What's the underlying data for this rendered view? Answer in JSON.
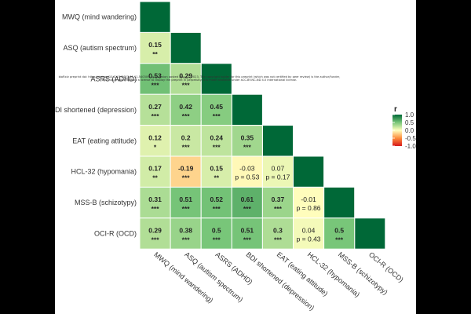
{
  "chart_data": {
    "type": "heatmap",
    "subtype": "lower-triangle correlation matrix",
    "variables": [
      "MWQ (mind wandering)",
      "ASQ (autism spectrum)",
      "ASRS (ADHD)",
      "BDI shortened (depression)",
      "EAT (eating attitude)",
      "HCL-32 (hypomania)",
      "MSS-B (schizotypy)",
      "OCI-R (OCD)"
    ],
    "cells": [
      {
        "row": 1,
        "col": 0,
        "value": 0.15,
        "label": "0.15",
        "sig": "**"
      },
      {
        "row": 2,
        "col": 0,
        "value": 0.53,
        "label": "0.53",
        "sig": "***"
      },
      {
        "row": 2,
        "col": 1,
        "value": 0.29,
        "label": "0.29",
        "sig": "***"
      },
      {
        "row": 3,
        "col": 0,
        "value": 0.27,
        "label": "0.27",
        "sig": "***"
      },
      {
        "row": 3,
        "col": 1,
        "value": 0.42,
        "label": "0.42",
        "sig": "***"
      },
      {
        "row": 3,
        "col": 2,
        "value": 0.45,
        "label": "0.45",
        "sig": "***"
      },
      {
        "row": 4,
        "col": 0,
        "value": 0.12,
        "label": "0.12",
        "sig": "*"
      },
      {
        "row": 4,
        "col": 1,
        "value": 0.2,
        "label": "0.2",
        "sig": "***"
      },
      {
        "row": 4,
        "col": 2,
        "value": 0.24,
        "label": "0.24",
        "sig": "***"
      },
      {
        "row": 4,
        "col": 3,
        "value": 0.35,
        "label": "0.35",
        "sig": "***"
      },
      {
        "row": 5,
        "col": 0,
        "value": 0.17,
        "label": "0.17",
        "sig": "**"
      },
      {
        "row": 5,
        "col": 1,
        "value": -0.19,
        "label": "-0.19",
        "sig": "***"
      },
      {
        "row": 5,
        "col": 2,
        "value": 0.15,
        "label": "0.15",
        "sig": "**"
      },
      {
        "row": 5,
        "col": 3,
        "value": -0.03,
        "label": "-0.03",
        "sig": "p = 0.53"
      },
      {
        "row": 5,
        "col": 4,
        "value": 0.07,
        "label": "0.07",
        "sig": "p = 0.17"
      },
      {
        "row": 6,
        "col": 0,
        "value": 0.31,
        "label": "0.31",
        "sig": "***"
      },
      {
        "row": 6,
        "col": 1,
        "value": 0.51,
        "label": "0.51",
        "sig": "***"
      },
      {
        "row": 6,
        "col": 2,
        "value": 0.52,
        "label": "0.52",
        "sig": "***"
      },
      {
        "row": 6,
        "col": 3,
        "value": 0.61,
        "label": "0.61",
        "sig": "***"
      },
      {
        "row": 6,
        "col": 4,
        "value": 0.37,
        "label": "0.37",
        "sig": "***"
      },
      {
        "row": 6,
        "col": 5,
        "value": -0.01,
        "label": "-0.01",
        "sig": "p = 0.86"
      },
      {
        "row": 7,
        "col": 0,
        "value": 0.29,
        "label": "0.29",
        "sig": "***"
      },
      {
        "row": 7,
        "col": 1,
        "value": 0.38,
        "label": "0.38",
        "sig": "***"
      },
      {
        "row": 7,
        "col": 2,
        "value": 0.5,
        "label": "0.5",
        "sig": "***"
      },
      {
        "row": 7,
        "col": 3,
        "value": 0.51,
        "label": "0.51",
        "sig": "***"
      },
      {
        "row": 7,
        "col": 4,
        "value": 0.3,
        "label": "0.3",
        "sig": "***"
      },
      {
        "row": 7,
        "col": 5,
        "value": 0.04,
        "label": "0.04",
        "sig": "p = 0.43"
      },
      {
        "row": 7,
        "col": 6,
        "value": 0.5,
        "label": "0.5",
        "sig": "***"
      }
    ],
    "diagonal_value": 1.0,
    "legend": {
      "title": "r",
      "ticks": [
        1.0,
        0.5,
        0.0,
        -0.5,
        -1.0
      ],
      "tick_labels": [
        "1.0",
        "0.5",
        "0.0",
        "-0.5",
        "-1.0"
      ],
      "position": "right"
    },
    "colors": {
      "high": "#006837",
      "mid_high": "#78c679",
      "zero": "#ffffbf",
      "mid_low": "#fd8d3c",
      "low": "#d7191c",
      "gridline": "#ffffff"
    }
  },
  "overlay_note": "bioRxiv preprint doi: https://doi.org/10.1101/2023.05.11.540309; this version posted May 11, 2023. The copyright holder for this preprint (which was not certified by peer review) is the author/funder, who has granted bioRxiv a license to display the preprint in perpetuity. It is made available under aCC-BY-NC-ND 4.0 International license."
}
